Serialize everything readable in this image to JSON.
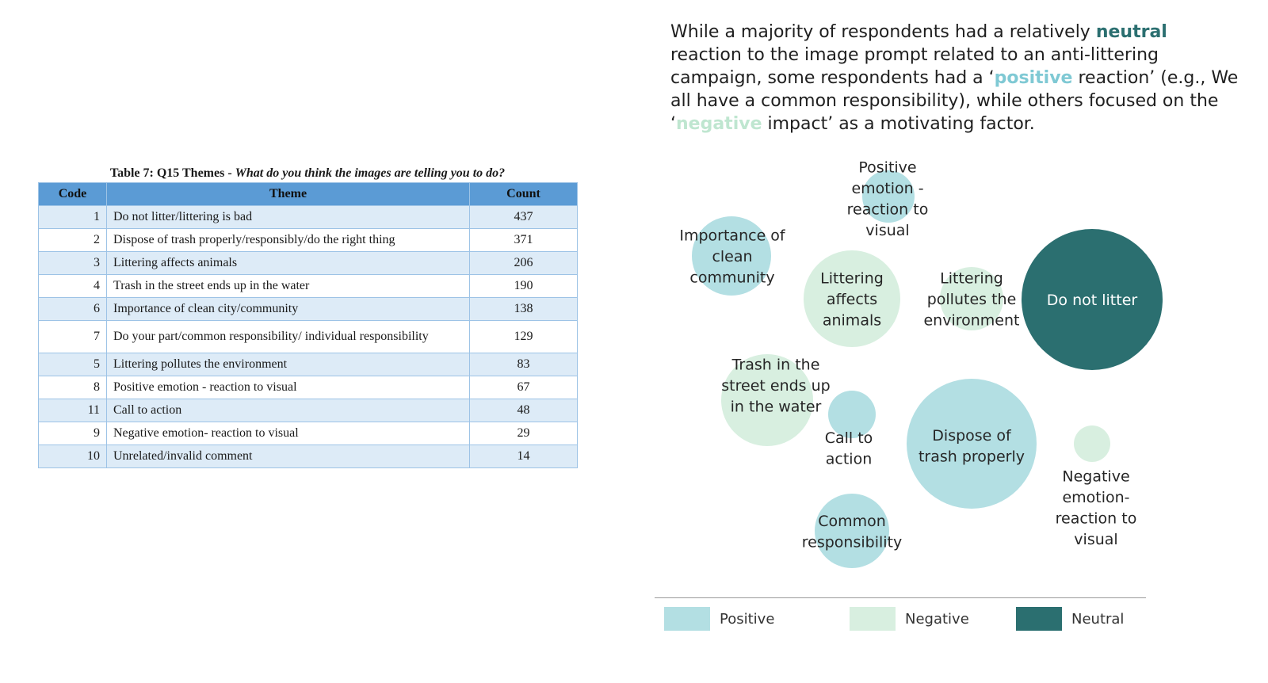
{
  "table": {
    "caption_prefix": "Table 7: Q15 Themes - ",
    "caption_question": "What do you think the images are telling you to do?",
    "headers": {
      "code": "Code",
      "theme": "Theme",
      "count": "Count"
    },
    "rows": [
      {
        "code": "1",
        "theme": "Do not litter/littering is bad",
        "count": "437"
      },
      {
        "code": "2",
        "theme": "Dispose of trash properly/responsibly/do the right thing",
        "count": "371"
      },
      {
        "code": "3",
        "theme": "Littering affects animals",
        "count": "206"
      },
      {
        "code": "4",
        "theme": "Trash in the street ends up in the water",
        "count": "190"
      },
      {
        "code": "6",
        "theme": "Importance of clean city/community",
        "count": "138"
      },
      {
        "code": "7",
        "theme": "Do your part/common responsibility/ individual responsibility",
        "count": "129"
      },
      {
        "code": "5",
        "theme": "Littering pollutes the environment",
        "count": "83"
      },
      {
        "code": "8",
        "theme": "Positive emotion - reaction to visual",
        "count": "67"
      },
      {
        "code": "11",
        "theme": "Call to action",
        "count": "48"
      },
      {
        "code": "9",
        "theme": "Negative emotion- reaction to visual",
        "count": "29"
      },
      {
        "code": "10",
        "theme": "Unrelated/invalid comment",
        "count": "14"
      }
    ]
  },
  "intro": {
    "p1": "While a majority of respondents had a relatively ",
    "neutral_word": "neutral",
    "p2": " reaction to the image prompt related to an anti-littering campaign, some respondents had a ‘",
    "positive_word": "positive",
    "p3": " reaction’ (e.g., We all have a common responsibility), while others focused on the ‘",
    "negative_word": "negative",
    "p4": " impact’ as a motivating factor."
  },
  "colors": {
    "positive": "#b3dfe3",
    "negative": "#d8efe0",
    "neutral": "#2b6f70"
  },
  "chart_data": {
    "type": "bubble",
    "title": "",
    "legend": [
      {
        "name": "Positive",
        "category": "positive"
      },
      {
        "name": "Negative",
        "category": "negative"
      },
      {
        "name": "Neutral",
        "category": "neutral"
      }
    ],
    "legend_position": "bottom",
    "bubbles": [
      {
        "label": [
          "Do not litter"
        ],
        "count": 437,
        "category": "neutral"
      },
      {
        "label": [
          "Dispose of",
          "trash properly"
        ],
        "count": 371,
        "category": "positive"
      },
      {
        "label": [
          "Littering",
          "affects",
          "animals"
        ],
        "count": 206,
        "category": "negative"
      },
      {
        "label": [
          "Trash in the",
          "street ends up",
          "in the water"
        ],
        "count": 190,
        "category": "negative"
      },
      {
        "label": [
          "Importance of",
          "clean",
          "community"
        ],
        "count": 138,
        "category": "positive"
      },
      {
        "label": [
          "Common",
          "responsibility"
        ],
        "count": 129,
        "category": "positive"
      },
      {
        "label": [
          "Littering",
          "pollutes the",
          "environment"
        ],
        "count": 83,
        "category": "negative"
      },
      {
        "label": [
          "Positive",
          "emotion -",
          "reaction to",
          "visual"
        ],
        "count": 67,
        "category": "positive"
      },
      {
        "label": [
          "Call to",
          "action"
        ],
        "count": 48,
        "category": "positive"
      },
      {
        "label": [
          "Negative",
          "emotion-",
          "reaction to",
          "visual"
        ],
        "count": 29,
        "category": "negative"
      }
    ]
  }
}
